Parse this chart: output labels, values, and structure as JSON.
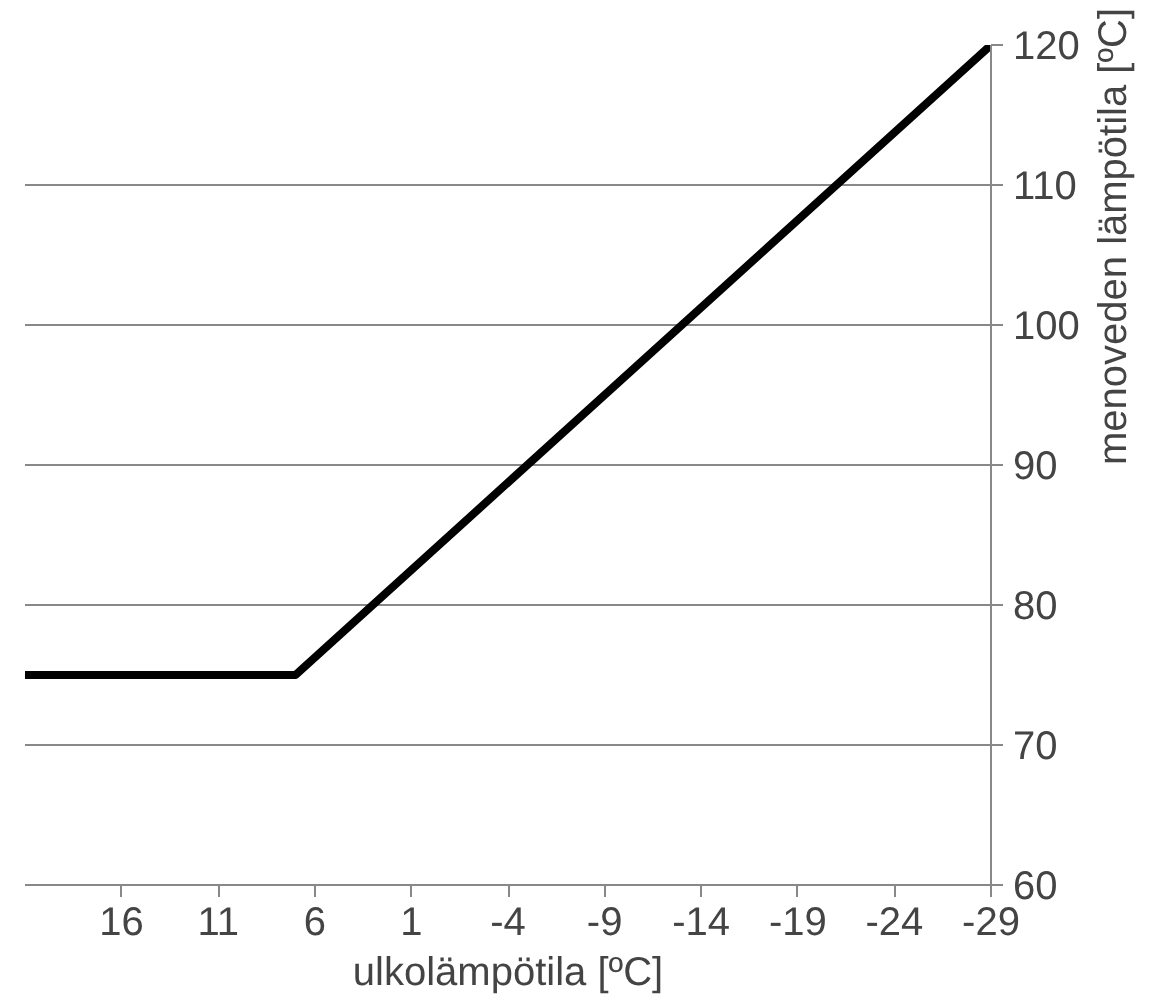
{
  "chart_data": {
    "type": "line",
    "xlabel": "ulkolämpötila [ºC]",
    "ylabel": "menoveden lämpötila [ºC]",
    "x": [
      21,
      7,
      -29
    ],
    "series": [
      {
        "color": "#000000",
        "values": [
          75,
          75,
          120
        ]
      }
    ],
    "xlim": [
      21,
      -29
    ],
    "xticks": [
      16,
      11,
      6,
      1,
      -4,
      -9,
      -14,
      -19,
      -24,
      -29
    ],
    "ylim": [
      60,
      120
    ],
    "yticks": [
      60,
      70,
      80,
      90,
      100,
      110,
      120
    ],
    "grid": "y",
    "marker": "none",
    "line_style": "solid"
  }
}
